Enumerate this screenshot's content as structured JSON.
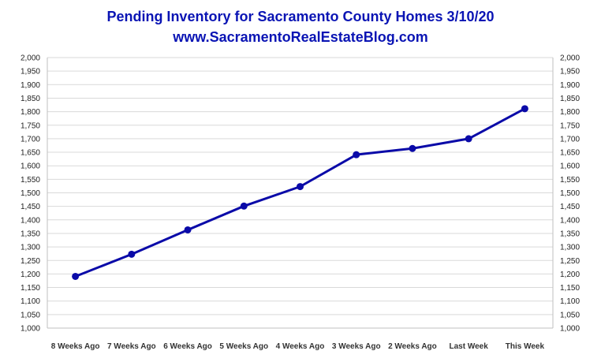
{
  "colors": {
    "title": "#0a14b4",
    "line": "#0a0aa8",
    "grid": "#d9d9d9",
    "axis": "#bfbfbf",
    "highlight_label": "#0a0aa8"
  },
  "chart_data": {
    "type": "line",
    "title": "Pending Inventory for Sacramento County Homes 3/10/20",
    "subtitle": "www.SacramentoRealEstateBlog.com",
    "categories": [
      "8 Weeks Ago",
      "7 Weeks Ago",
      "6 Weeks Ago",
      "5 Weeks Ago",
      "4 Weeks Ago",
      "3 Weeks Ago",
      "2 Weeks Ago",
      "Last Week",
      "This Week"
    ],
    "series": [
      {
        "values": [
          1191,
          1273,
          1363,
          1451,
          1523,
          1641,
          1664,
          1700,
          1811
        ]
      }
    ],
    "ylim": [
      1000,
      2000
    ],
    "ytick_step": 50,
    "yticks_both_sides": true,
    "grid": true,
    "legend": "none",
    "highlight_category": "This Week"
  }
}
